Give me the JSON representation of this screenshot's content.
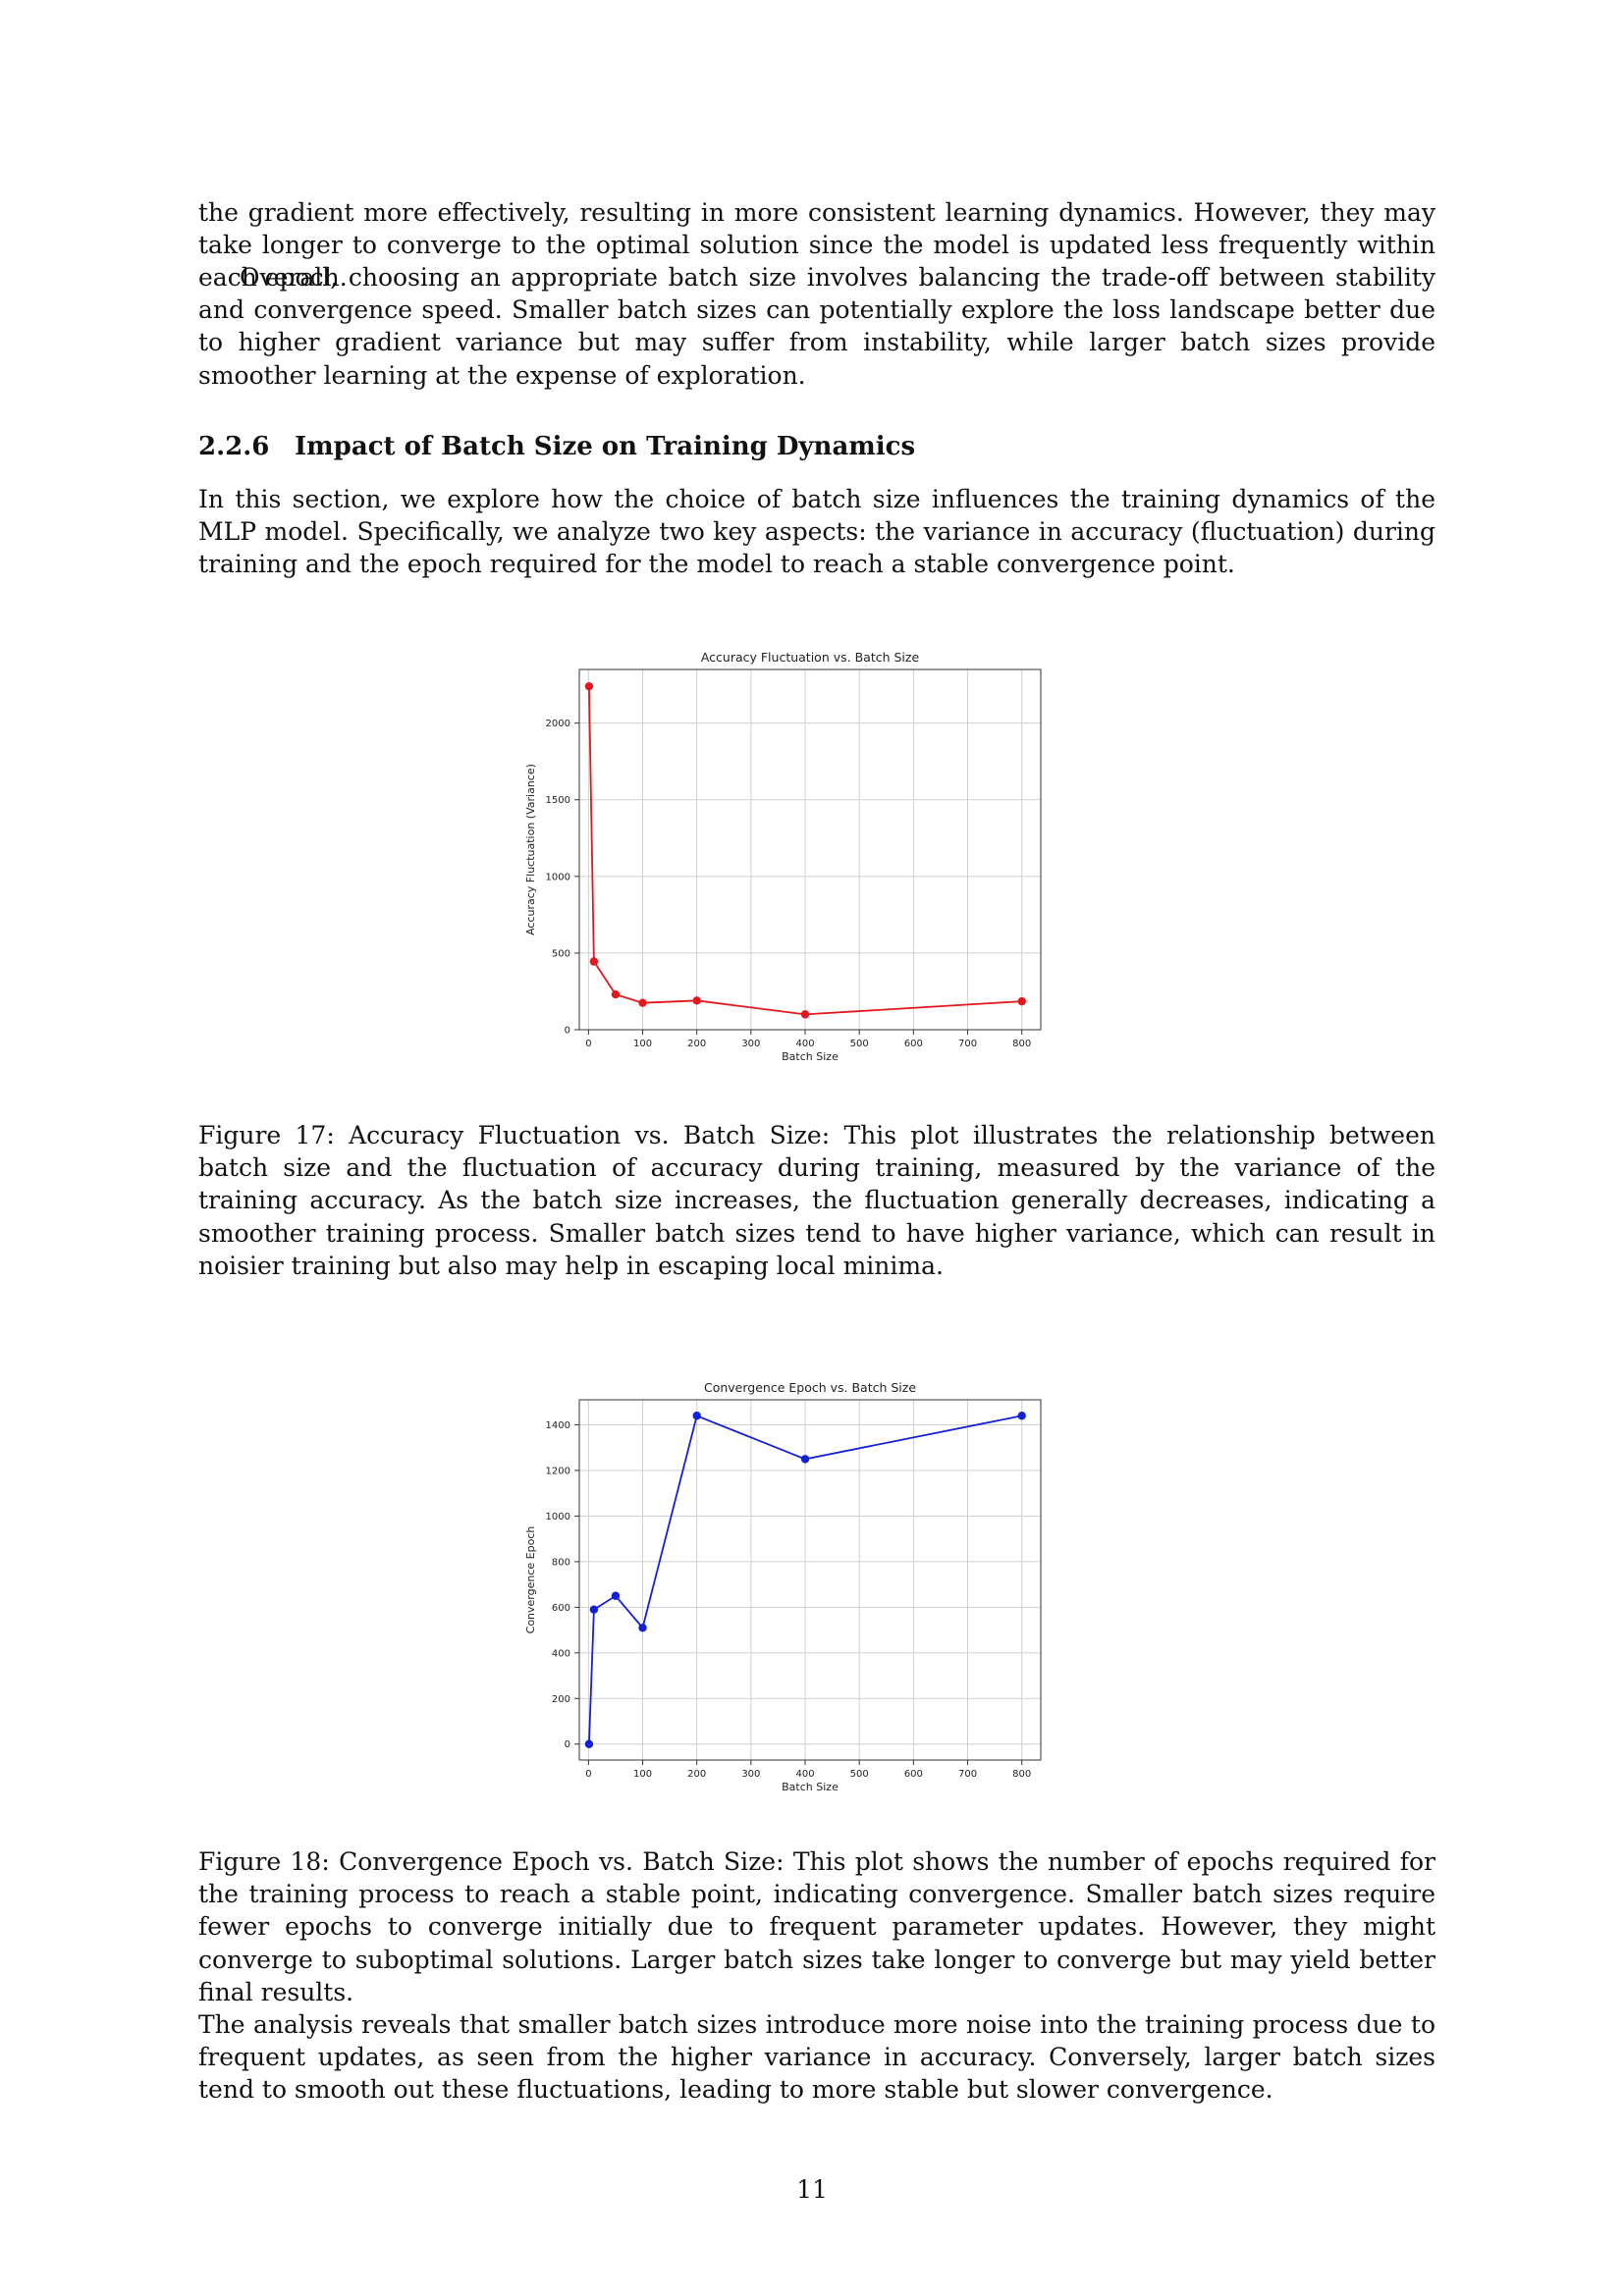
{
  "paragraphs": {
    "p1": "the gradient more effectively, resulting in more consistent learning dynamics. However, they may take longer to converge to the optimal solution since the model is updated less frequently within each epoch.",
    "p2": "Overall, choosing an appropriate batch size involves balancing the trade-off between stability and convergence speed. Smaller batch sizes can potentially explore the loss landscape better due to higher gradient variance but may suffer from instability, while larger batch sizes provide smoother learning at the expense of exploration."
  },
  "section": {
    "number": "2.2.6",
    "title": "Impact of Batch Size on Training Dynamics",
    "intro": "In this section, we explore how the choice of batch size influences the training dynamics of the MLP model. Specifically, we analyze two key aspects: the variance in accuracy (fluctuation) during training and the epoch required for the model to reach a stable convergence point."
  },
  "captions": {
    "fig17": "Figure 17: Accuracy Fluctuation vs. Batch Size: This plot illustrates the relationship between batch size and the fluctuation of accuracy during training, measured by the variance of the training accuracy. As the batch size increases, the fluctuation generally decreases, indicating a smoother training process. Smaller batch sizes tend to have higher variance, which can result in noisier training but also may help in escaping local minima.",
    "fig18": "Figure 18: Convergence Epoch vs. Batch Size: This plot shows the number of epochs required for the training process to reach a stable point, indicating convergence. Smaller batch sizes require fewer epochs to converge initially due to frequent parameter updates. However, they might converge to suboptimal solutions. Larger batch sizes take longer to converge but may yield better final results."
  },
  "closing": "The analysis reveals that smaller batch sizes introduce more noise into the training process due to frequent updates, as seen from the higher variance in accuracy. Conversely, larger batch sizes tend to smooth out these fluctuations, leading to more stable but slower convergence.",
  "page_number": "11",
  "chart_data": [
    {
      "type": "line",
      "title": "Accuracy Fluctuation vs. Batch Size",
      "xlabel": "Batch Size",
      "ylabel": "Accuracy Fluctuation (Variance)",
      "x": [
        1,
        10,
        50,
        100,
        200,
        400,
        800
      ],
      "y": [
        2240,
        445,
        230,
        175,
        190,
        100,
        185
      ],
      "xlim": [
        -17,
        835
      ],
      "ylim": [
        0,
        2350
      ],
      "xticks": [
        0,
        100,
        200,
        300,
        400,
        500,
        600,
        700,
        800
      ],
      "yticks": [
        0,
        500,
        1000,
        1500,
        2000
      ],
      "color": "#e3171c",
      "grid": true
    },
    {
      "type": "line",
      "title": "Convergence Epoch vs. Batch Size",
      "xlabel": "Batch Size",
      "ylabel": "Convergence Epoch",
      "x": [
        1,
        10,
        50,
        100,
        200,
        400,
        800
      ],
      "y": [
        0,
        590,
        650,
        510,
        1440,
        1250,
        1440
      ],
      "xlim": [
        -17,
        835
      ],
      "ylim": [
        -70,
        1510
      ],
      "xticks": [
        0,
        100,
        200,
        300,
        400,
        500,
        600,
        700,
        800
      ],
      "yticks": [
        0,
        200,
        400,
        600,
        800,
        1000,
        1200,
        1400
      ],
      "color": "#1420d6",
      "grid": true
    }
  ]
}
